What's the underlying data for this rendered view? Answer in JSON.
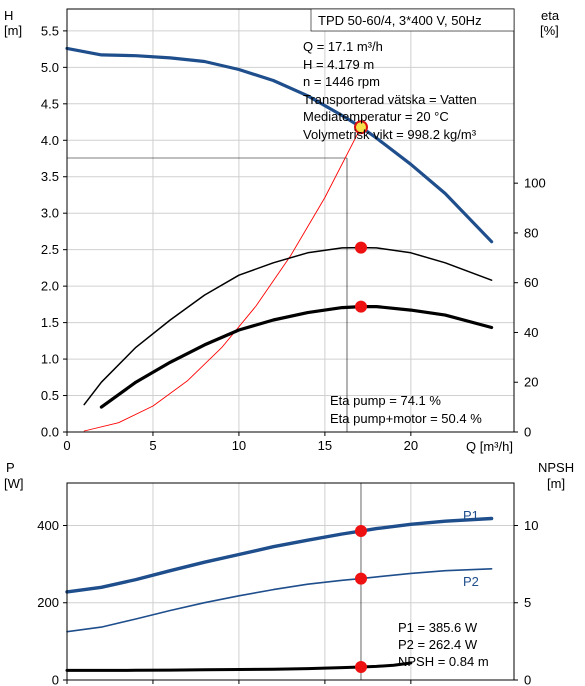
{
  "chart_data": [
    {
      "type": "line",
      "title": "TPD 50-60/4, 3*400 V, 50Hz",
      "xlabel": "Q [m³/h]",
      "ylabel_left": {
        "name": "H",
        "unit": "[m]"
      },
      "ylabel_right": {
        "name": "eta",
        "unit": "[%]"
      },
      "xlim": [
        0,
        26
      ],
      "ylim_left": [
        0,
        5.8
      ],
      "ylim_right": [
        0,
        170
      ],
      "xticks": [
        "0",
        "5",
        "10",
        "15",
        "20"
      ],
      "yticks_left": [
        "0.0",
        "0.5",
        "1.0",
        "1.5",
        "2.0",
        "2.5",
        "3.0",
        "3.5",
        "4.0",
        "4.5",
        "5.0",
        "5.5"
      ],
      "yticks_right": [
        "0",
        "20",
        "40",
        "60",
        "80",
        "100"
      ],
      "grid": true,
      "info_lines": [
        "Q = 17.1 m³/h",
        "H = 4.179 m",
        "n = 1446 rpm",
        "Transporterad vätska = Vatten",
        "Mediatemperatur = 20 °C",
        "Volymetrisk vikt = 998.2 kg/m³"
      ],
      "eta_lines": [
        "Eta pump = 74.1 %",
        "Eta pump+motor = 50.4 %"
      ],
      "series": [
        {
          "axis": "left",
          "color": "#1f4e8c",
          "x": [
            0,
            2,
            4,
            6,
            8,
            10,
            12,
            14,
            16,
            17.1,
            18,
            20,
            22,
            24.7
          ],
          "y": [
            5.26,
            5.17,
            5.16,
            5.13,
            5.08,
            4.97,
            4.82,
            4.61,
            4.34,
            4.18,
            4.03,
            3.67,
            3.27,
            2.61
          ]
        },
        {
          "axis": "left",
          "color": "#ff0000",
          "x": [
            1,
            3,
            5,
            7,
            9,
            11,
            13,
            15,
            17.1
          ],
          "y": [
            0.014,
            0.128,
            0.357,
            0.7,
            1.157,
            1.729,
            2.415,
            3.215,
            4.179
          ]
        },
        {
          "axis": "right",
          "color": "#000000",
          "x": [
            1,
            2,
            4,
            6,
            8,
            10,
            12,
            14,
            16,
            17.1,
            18,
            20,
            22,
            24.7
          ],
          "y": [
            11,
            20,
            34,
            45,
            55,
            63,
            68,
            72,
            74,
            74.1,
            74,
            72,
            68,
            61
          ]
        },
        {
          "axis": "right",
          "color": "#000000",
          "x": [
            2,
            4,
            6,
            8,
            10,
            12,
            14,
            16,
            17.1,
            18,
            20,
            22,
            24.7
          ],
          "y": [
            10,
            20,
            28,
            35,
            41,
            45,
            48,
            50,
            50.4,
            50.4,
            49,
            47,
            42
          ]
        }
      ],
      "markers": [
        {
          "axis": "left",
          "x": 17.1,
          "y": 4.179,
          "ring": true
        },
        {
          "axis": "right",
          "x": 17.1,
          "y": 74.1
        },
        {
          "axis": "right",
          "x": 17.1,
          "y": 50.4
        }
      ]
    },
    {
      "type": "line",
      "ylabel_left": {
        "name": "P",
        "unit": "[W]"
      },
      "ylabel_right": {
        "name": "NPSH",
        "unit": "[m]"
      },
      "xlim": [
        0,
        26
      ],
      "ylim_left": [
        0,
        510
      ],
      "ylim_right": [
        0,
        12.75
      ],
      "yticks_left": [
        "0",
        "200",
        "400"
      ],
      "yticks_right": [
        "0",
        "5",
        "10"
      ],
      "grid": true,
      "info_lines": [
        "P1 = 385.6 W",
        "P2 = 262.4 W",
        "NPSH = 0.84 m"
      ],
      "series": [
        {
          "name": "P1",
          "axis": "left",
          "color": "#1f4e8c",
          "x": [
            0,
            2,
            4,
            6,
            8,
            10,
            12,
            14,
            16,
            17.1,
            18,
            20,
            22,
            24.7
          ],
          "y": [
            228,
            240,
            260,
            283,
            305,
            325,
            345,
            362,
            378,
            385.6,
            392,
            403,
            411,
            418
          ]
        },
        {
          "name": "P2",
          "axis": "left",
          "color": "#1f4e8c",
          "x": [
            0,
            2,
            4,
            6,
            8,
            10,
            12,
            14,
            16,
            17.1,
            18,
            20,
            22,
            24.7
          ],
          "y": [
            125,
            137,
            158,
            180,
            200,
            218,
            234,
            248,
            258,
            262.4,
            267,
            276,
            283,
            288
          ]
        },
        {
          "axis": "right",
          "color": "#000000",
          "x": [
            0,
            2,
            4,
            6,
            8,
            10,
            12,
            14,
            16,
            17.1,
            18,
            19,
            20
          ],
          "y": [
            0.62,
            0.62,
            0.63,
            0.64,
            0.66,
            0.68,
            0.7,
            0.74,
            0.8,
            0.84,
            0.88,
            0.96,
            1.1
          ]
        }
      ],
      "markers": [
        {
          "axis": "left",
          "x": 17.1,
          "y": 385.6
        },
        {
          "axis": "left",
          "x": 17.1,
          "y": 262.4
        },
        {
          "axis": "right",
          "x": 17.1,
          "y": 0.84
        }
      ]
    }
  ]
}
